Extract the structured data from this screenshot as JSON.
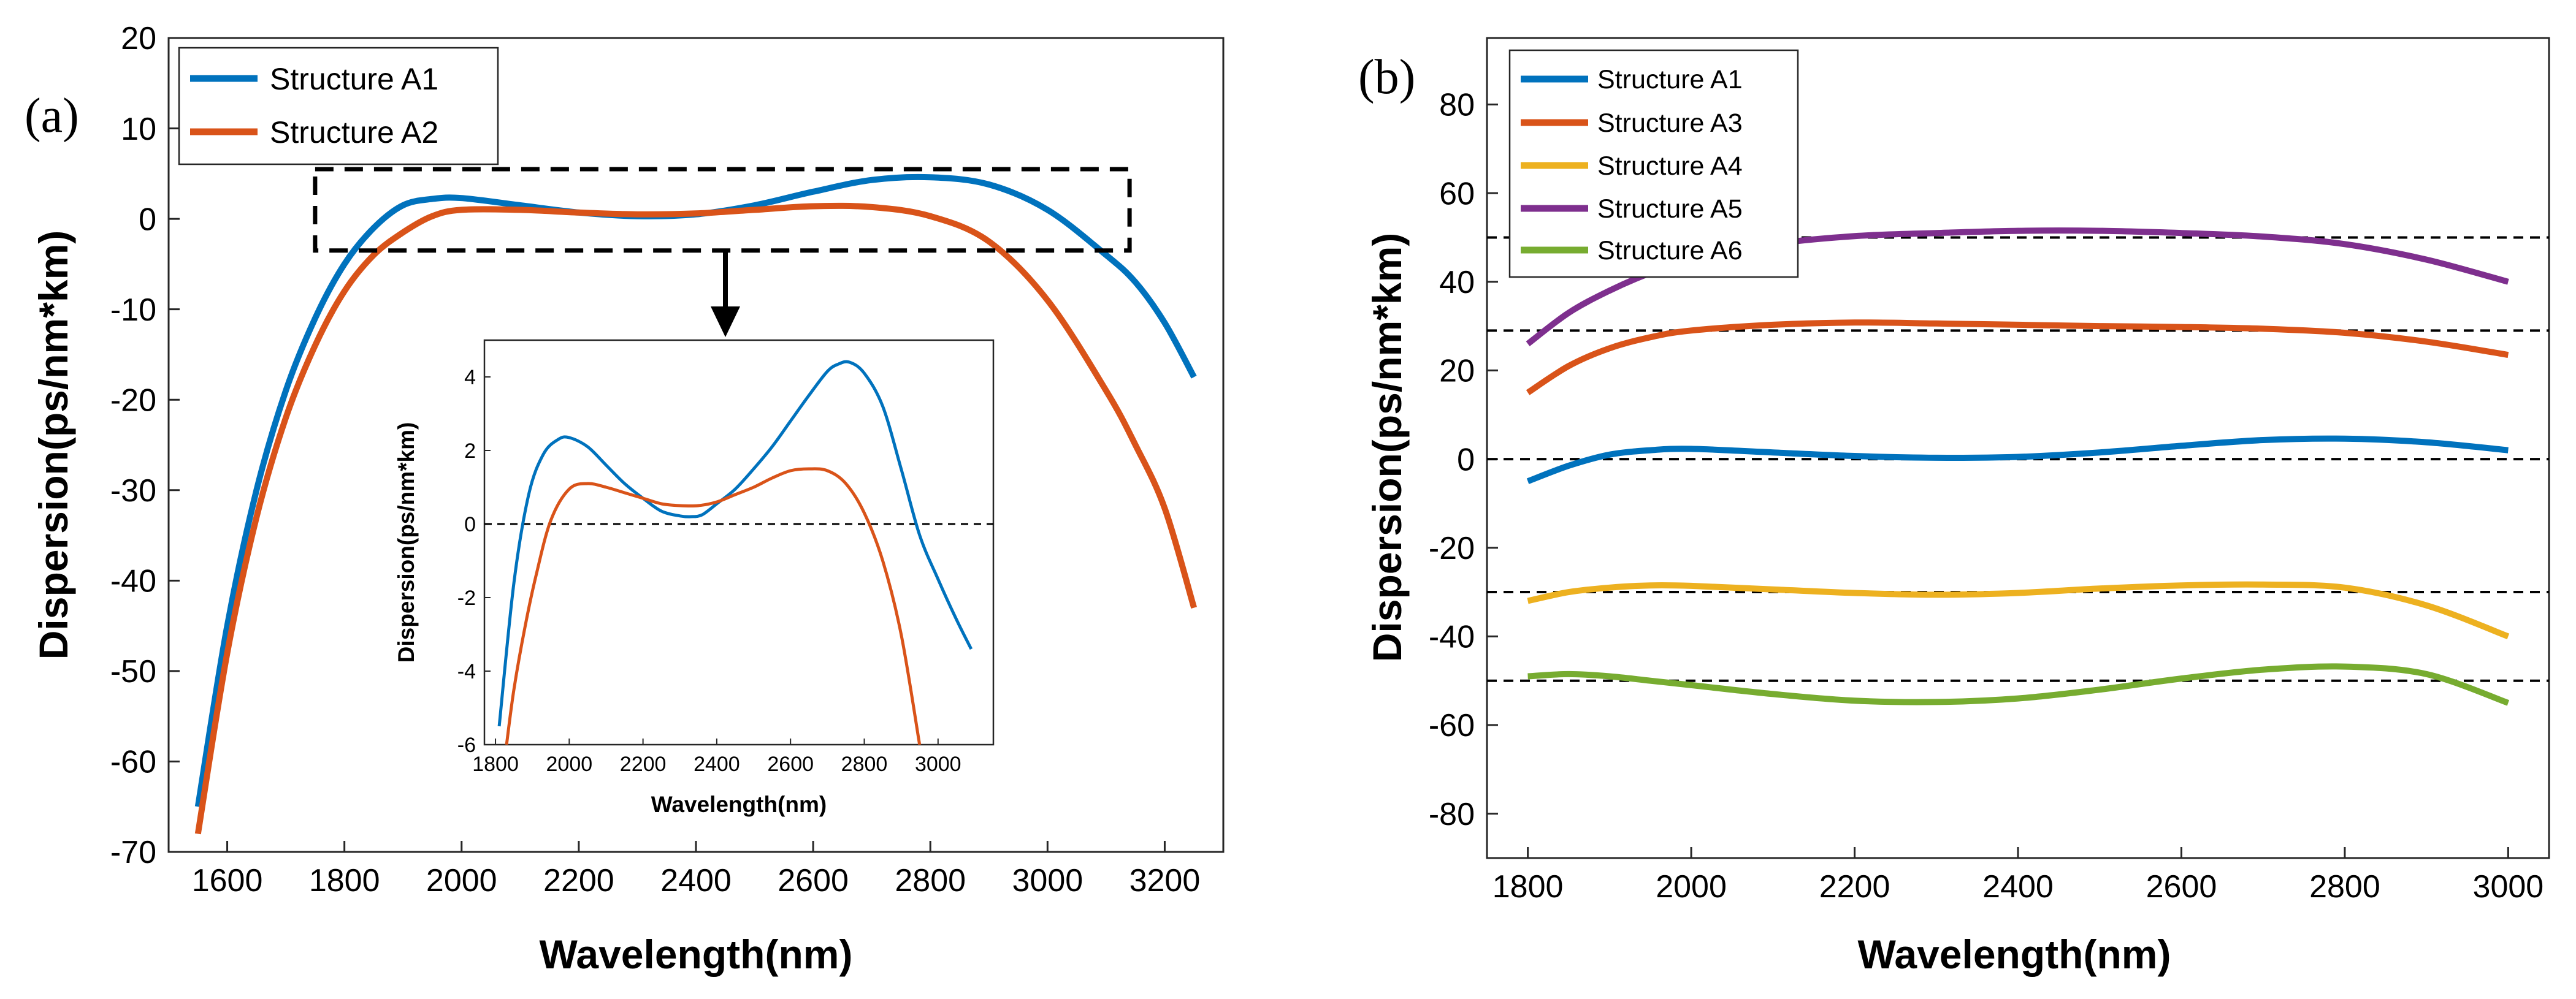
{
  "colors": {
    "A1": "#0072BD",
    "A2": "#D95319",
    "A3": "#D95319",
    "A4": "#EDB120",
    "A5": "#7E2F8E",
    "A6": "#77AC30"
  },
  "chart_data": [
    {
      "id": "a",
      "panel_label": "(a)",
      "type": "line",
      "xlabel": "Wavelength(nm)",
      "ylabel": "Dispersion(ps/nm*km)",
      "xlim": [
        1500,
        3300
      ],
      "ylim": [
        -70,
        20
      ],
      "xticks": [
        1600,
        1800,
        2000,
        2200,
        2400,
        2600,
        2800,
        3000,
        3200
      ],
      "yticks": [
        20,
        10,
        0,
        -10,
        -20,
        -30,
        -40,
        -50,
        -60,
        -70
      ],
      "legend": "top-left",
      "series": [
        {
          "name": "Structure A1",
          "color_key": "A1",
          "x": [
            1550,
            1600,
            1650,
            1700,
            1750,
            1800,
            1850,
            1900,
            1950,
            2000,
            2100,
            2200,
            2300,
            2400,
            2500,
            2600,
            2700,
            2800,
            2900,
            3000,
            3100,
            3150,
            3200,
            3250
          ],
          "y": [
            -65,
            -45,
            -30,
            -19,
            -11,
            -5,
            -1,
            1.5,
            2.2,
            2.3,
            1.5,
            0.7,
            0.3,
            0.5,
            1.5,
            3.0,
            4.3,
            4.6,
            3.8,
            1.0,
            -4.0,
            -7.0,
            -11.5,
            -17.5
          ]
        },
        {
          "name": "Structure A2",
          "color_key": "A2",
          "x": [
            1550,
            1600,
            1650,
            1700,
            1750,
            1800,
            1850,
            1900,
            1950,
            2000,
            2100,
            2200,
            2300,
            2400,
            2500,
            2600,
            2700,
            2800,
            2900,
            3000,
            3100,
            3150,
            3200,
            3250
          ],
          "y": [
            -68,
            -48,
            -33,
            -22,
            -14,
            -8,
            -4,
            -1.5,
            0.3,
            1.0,
            1.0,
            0.7,
            0.5,
            0.6,
            1.0,
            1.4,
            1.3,
            0.3,
            -2.5,
            -9.0,
            -19.0,
            -25.0,
            -32.0,
            -43.0
          ]
        }
      ],
      "zoom_box": {
        "x": [
          1750,
          3140
        ],
        "y": [
          -3.5,
          5.5
        ]
      },
      "inset": {
        "type": "line",
        "xlabel": "Wavelength(nm)",
        "ylabel": "Dispersion(ps/nm*km)",
        "xlim": [
          1770,
          3150
        ],
        "ylim": [
          -6,
          5
        ],
        "xticks": [
          1800,
          2000,
          2200,
          2400,
          2600,
          2800,
          3000
        ],
        "yticks": [
          4,
          2,
          0,
          -2,
          -4,
          -6
        ],
        "reference_line_y": 0,
        "series": [
          {
            "name": "Structure A1",
            "color_key": "A1",
            "x": [
              1810,
              1850,
              1890,
              1930,
              1970,
              2000,
              2050,
              2100,
              2150,
              2200,
              2250,
              2300,
              2330,
              2360,
              2400,
              2450,
              2500,
              2550,
              2600,
              2650,
              2700,
              2730,
              2760,
              2800,
              2850,
              2900,
              2950,
              3000,
              3050,
              3090
            ],
            "y": [
              -5.5,
              -1.6,
              0.8,
              1.9,
              2.3,
              2.35,
              2.1,
              1.6,
              1.1,
              0.7,
              0.35,
              0.22,
              0.2,
              0.25,
              0.55,
              0.95,
              1.5,
              2.1,
              2.8,
              3.5,
              4.15,
              4.35,
              4.4,
              4.1,
              3.2,
              1.5,
              -0.3,
              -1.5,
              -2.6,
              -3.4
            ]
          },
          {
            "name": "Structure A2",
            "color_key": "A2",
            "x": [
              1830,
              1850,
              1880,
              1910,
              1950,
              2000,
              2050,
              2100,
              2150,
              2200,
              2250,
              2300,
              2350,
              2400,
              2450,
              2500,
              2550,
              2600,
              2650,
              2700,
              2750,
              2800,
              2850,
              2900,
              2950
            ],
            "y": [
              -6.0,
              -4.5,
              -2.8,
              -1.4,
              0.1,
              0.95,
              1.1,
              1.0,
              0.85,
              0.7,
              0.55,
              0.5,
              0.5,
              0.6,
              0.8,
              1.0,
              1.25,
              1.45,
              1.5,
              1.45,
              1.1,
              0.3,
              -1.0,
              -3.0,
              -6.0
            ]
          }
        ]
      }
    },
    {
      "id": "b",
      "panel_label": "(b)",
      "type": "line",
      "xlabel": "Wavelength(nm)",
      "ylabel": "Dispersion(ps/nm*km)",
      "xlim": [
        1750,
        3050
      ],
      "ylim": [
        -90,
        95
      ],
      "xticks": [
        1800,
        2000,
        2200,
        2400,
        2600,
        2800,
        3000
      ],
      "yticks": [
        80,
        60,
        40,
        20,
        0,
        -20,
        -40,
        -60,
        -80
      ],
      "legend": "top-left",
      "reference_lines_y": [
        50,
        29,
        0,
        -30,
        -50
      ],
      "series": [
        {
          "name": "Structure A1",
          "color_key": "A1",
          "x": [
            1800,
            1850,
            1900,
            1950,
            2000,
            2100,
            2200,
            2300,
            2400,
            2500,
            2600,
            2700,
            2800,
            2900,
            3000
          ],
          "y": [
            -5,
            -1.5,
            1.0,
            2.0,
            2.3,
            1.5,
            0.7,
            0.3,
            0.5,
            1.5,
            3.0,
            4.3,
            4.6,
            3.8,
            2.0
          ]
        },
        {
          "name": "Structure A3",
          "color_key": "A3",
          "x": [
            1800,
            1850,
            1900,
            1950,
            2000,
            2100,
            2200,
            2300,
            2400,
            2500,
            2600,
            2700,
            2800,
            2900,
            3000
          ],
          "y": [
            15,
            21,
            25,
            27.5,
            29.0,
            30.3,
            30.8,
            30.6,
            30.3,
            30.0,
            29.8,
            29.4,
            28.5,
            26.5,
            23.5
          ]
        },
        {
          "name": "Structure A4",
          "color_key": "A4",
          "x": [
            1800,
            1850,
            1900,
            1950,
            2000,
            2100,
            2200,
            2300,
            2400,
            2500,
            2600,
            2700,
            2800,
            2900,
            3000
          ],
          "y": [
            -32,
            -30,
            -29,
            -28.5,
            -28.6,
            -29.4,
            -30.2,
            -30.6,
            -30.2,
            -29.2,
            -28.5,
            -28.3,
            -29.0,
            -33.0,
            -40.0
          ]
        },
        {
          "name": "Structure A5",
          "color_key": "A5",
          "x": [
            1800,
            1850,
            1900,
            1950,
            2000,
            2100,
            2200,
            2300,
            2400,
            2500,
            2600,
            2700,
            2800,
            2900,
            3000
          ],
          "y": [
            26,
            33,
            38,
            42,
            45,
            48.5,
            50.3,
            51.0,
            51.5,
            51.5,
            51.0,
            50.2,
            48.5,
            45.0,
            40.0
          ]
        },
        {
          "name": "Structure A6",
          "color_key": "A6",
          "x": [
            1800,
            1850,
            1900,
            1950,
            2000,
            2100,
            2200,
            2300,
            2400,
            2500,
            2600,
            2700,
            2800,
            2900,
            3000
          ],
          "y": [
            -49,
            -48.5,
            -49,
            -50,
            -51,
            -53,
            -54.5,
            -54.8,
            -54,
            -52,
            -49.5,
            -47.5,
            -46.8,
            -48.5,
            -55
          ]
        }
      ]
    }
  ]
}
